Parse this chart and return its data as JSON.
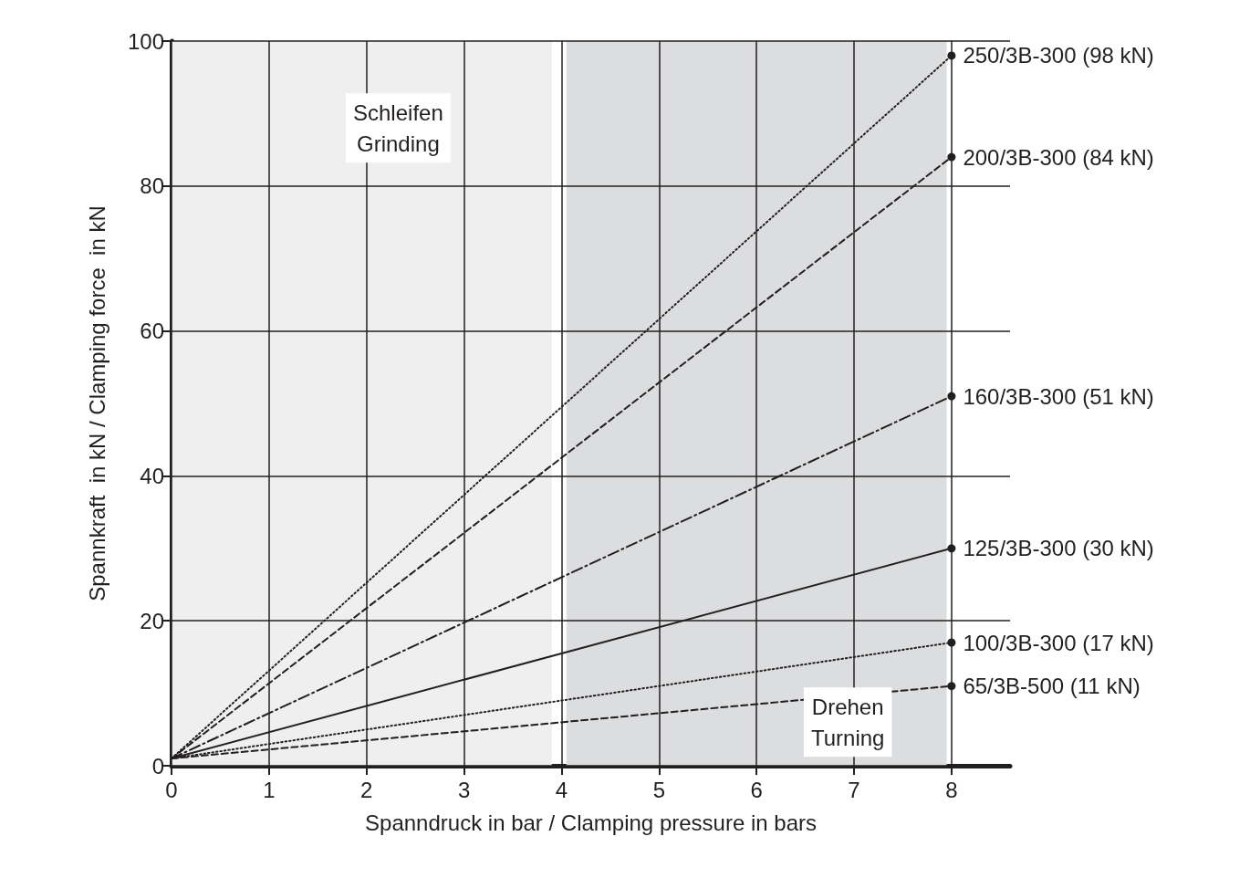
{
  "chart_data": {
    "type": "line",
    "xlabel": "Spanndruck in bar / Clamping pressure in bars",
    "ylabel": "Spannkraft  in kN / Clamping force  in kN",
    "xlim": [
      0,
      8.6
    ],
    "xticks": [
      0,
      1,
      2,
      3,
      4,
      5,
      6,
      7,
      8
    ],
    "ylim": [
      0,
      100
    ],
    "yticks": [
      0,
      20,
      40,
      60,
      80,
      100
    ],
    "grid": true,
    "legend": false,
    "marker": "circle",
    "x": [
      0,
      8
    ],
    "bands": [
      {
        "axis": "x",
        "from": 0,
        "to": 3.9,
        "label": "Schleifen\nGrinding",
        "color": "#efeff0"
      },
      {
        "axis": "x",
        "from": 4.05,
        "to": 7.95,
        "label": "Drehen\nTurning",
        "color": "#dcdddf"
      }
    ],
    "series": [
      {
        "name": "250/3B-300 (98 kN)",
        "color": "#231f20",
        "line_style": "dotted",
        "values": [
          1,
          98
        ]
      },
      {
        "name": "200/3B-300 (84 kN)",
        "color": "#231f20",
        "line_style": "dashed",
        "values": [
          1,
          84
        ]
      },
      {
        "name": "160/3B-300 (51 kN)",
        "color": "#231f20",
        "line_style": "dashdot",
        "values": [
          1,
          51
        ]
      },
      {
        "name": "125/3B-300 (30 kN)",
        "color": "#231f20",
        "line_style": "solid",
        "values": [
          1,
          30
        ]
      },
      {
        "name": "100/3B-300 (17 kN)",
        "color": "#231f20",
        "line_style": "dotted",
        "values": [
          1,
          17
        ]
      },
      {
        "name": "65/3B-500 (11 kN)",
        "color": "#231f20",
        "line_style": "dashed",
        "values": [
          1,
          11
        ]
      }
    ]
  }
}
